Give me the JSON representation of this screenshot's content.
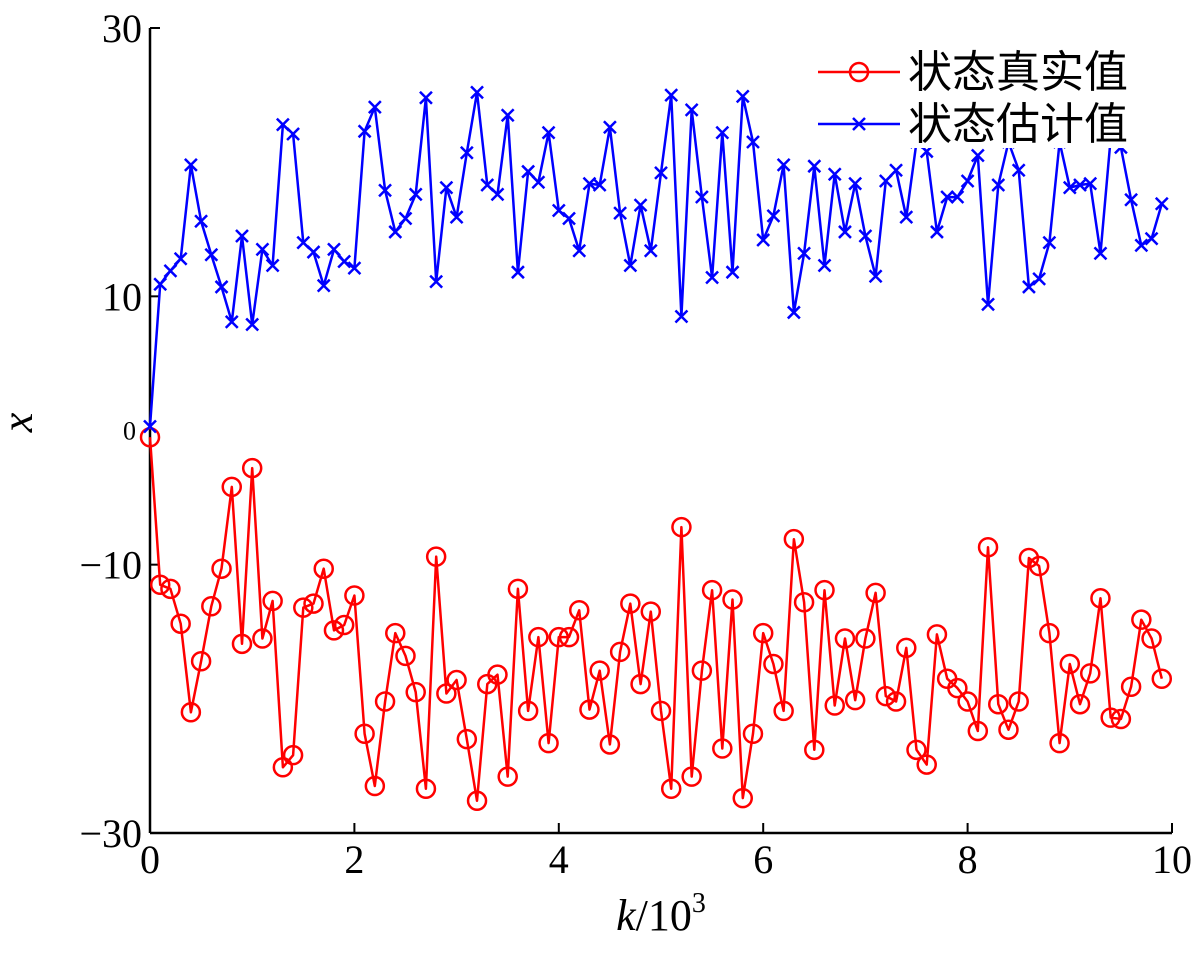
{
  "chart_data": {
    "type": "line",
    "title": "",
    "xlabel": "k",
    "xlabel_unit": "/10",
    "xlabel_exp": "3",
    "ylabel": "x",
    "xlim": [
      0,
      10
    ],
    "ylim": [
      -30,
      30
    ],
    "xticks": [
      0,
      2,
      4,
      6,
      8,
      10
    ],
    "xtick_labels": [
      "0",
      "2",
      "4",
      "6",
      "8",
      "10"
    ],
    "yticks": [
      -30,
      -10,
      10,
      30
    ],
    "ytick_labels": [
      "−30",
      "−10",
      "10",
      "30"
    ],
    "zero_label": "0",
    "grid": false,
    "legend_position": "top-right",
    "x": [
      0,
      0.1,
      0.2,
      0.3,
      0.4,
      0.5,
      0.6,
      0.7,
      0.8,
      0.9,
      1.0,
      1.1,
      1.2,
      1.3,
      1.4,
      1.5,
      1.6,
      1.7,
      1.8,
      1.9,
      2.0,
      2.1,
      2.2,
      2.3,
      2.4,
      2.5,
      2.6,
      2.7,
      2.8,
      2.9,
      3.0,
      3.1,
      3.2,
      3.3,
      3.4,
      3.5,
      3.6,
      3.7,
      3.8,
      3.9,
      4.0,
      4.1,
      4.2,
      4.3,
      4.4,
      4.5,
      4.6,
      4.7,
      4.8,
      4.9,
      5.0,
      5.1,
      5.2,
      5.3,
      5.4,
      5.5,
      5.6,
      5.7,
      5.8,
      5.9,
      6.0,
      6.1,
      6.2,
      6.3,
      6.4,
      6.5,
      6.6,
      6.7,
      6.8,
      6.9,
      7.0,
      7.1,
      7.2,
      7.3,
      7.4,
      7.5,
      7.6,
      7.7,
      7.8,
      7.9,
      8.0,
      8.1,
      8.2,
      8.3,
      8.4,
      8.5,
      8.6,
      8.7,
      8.8,
      8.9,
      9.0,
      9.1,
      9.2,
      9.3,
      9.4,
      9.5,
      9.6,
      9.7,
      9.8,
      9.9
    ],
    "series": [
      {
        "name": "状态真实值",
        "color": "#ff0000",
        "marker": "circle",
        "values": [
          -0.5,
          -11.5,
          -11.8,
          -14.4,
          -21,
          -17.2,
          -13.1,
          -10.3,
          -4.2,
          -15.9,
          -2.8,
          -15.5,
          -12.7,
          -25.1,
          -24.2,
          -13.2,
          -12.9,
          -10.3,
          -14.9,
          -14.5,
          -12.3,
          -22.6,
          -26.5,
          -20.2,
          -15.1,
          -16.8,
          -19.5,
          -26.7,
          -9.4,
          -19.6,
          -18.6,
          -23,
          -27.6,
          -18.9,
          -18.2,
          -25.8,
          -11.8,
          -20.9,
          -15.4,
          -23.3,
          -15.4,
          -15.4,
          -13.4,
          -20.8,
          -17.9,
          -23.4,
          -16.5,
          -12.9,
          -18.9,
          -13.5,
          -20.9,
          -26.7,
          -7.2,
          -25.8,
          -17.9,
          -11.9,
          -23.7,
          -12.6,
          -27.4,
          -22.6,
          -15.1,
          -17.4,
          -20.9,
          -8.1,
          -12.8,
          -23.8,
          -11.9,
          -20.5,
          -15.5,
          -20.1,
          -15.5,
          -12.1,
          -19.8,
          -20.2,
          -16.2,
          -23.8,
          -24.9,
          -15.2,
          -18.5,
          -19.2,
          -20.2,
          -22.4,
          -8.7,
          -20.4,
          -22.3,
          -20.2,
          -9.5,
          -10.1,
          -15.1,
          -23.3,
          -17.4,
          -20.4,
          -18.1,
          -12.5,
          -21.4,
          -21.5,
          -19.1,
          -14.1,
          -15.5,
          -18.5
        ]
      },
      {
        "name": "状态估计值",
        "color": "#0000ff",
        "marker": "x",
        "values": [
          0.3,
          10.9,
          11.9,
          12.8,
          19.8,
          15.6,
          13.1,
          10.7,
          8.1,
          14.5,
          7.9,
          13.5,
          12.3,
          22.8,
          22.1,
          14,
          13.3,
          10.8,
          13.5,
          12.6,
          12.1,
          22.3,
          24.1,
          17.9,
          14.8,
          15.8,
          17.6,
          24.8,
          11.1,
          18.1,
          15.9,
          20.7,
          25.2,
          18.3,
          17.6,
          23.5,
          11.8,
          19.3,
          18.5,
          22.2,
          16.4,
          15.8,
          13.4,
          18.4,
          18.3,
          22.6,
          16.2,
          12.3,
          16.8,
          13.4,
          19.2,
          25,
          8.5,
          23.9,
          17.4,
          11.4,
          22.2,
          11.8,
          24.9,
          21.5,
          14.2,
          16,
          19.8,
          8.8,
          13.2,
          19.7,
          12.3,
          19.1,
          14.8,
          18.4,
          14.5,
          11.5,
          18.6,
          19.4,
          15.9,
          21.5,
          20.8,
          14.8,
          17.4,
          17.4,
          18.6,
          20.5,
          9.4,
          18.3,
          21.5,
          19.4,
          10.7,
          11.3,
          14,
          21.5,
          18.1,
          18.3,
          18.4,
          13.2,
          21.8,
          21.1,
          17.2,
          13.8,
          14.3,
          16.9
        ]
      }
    ]
  }
}
